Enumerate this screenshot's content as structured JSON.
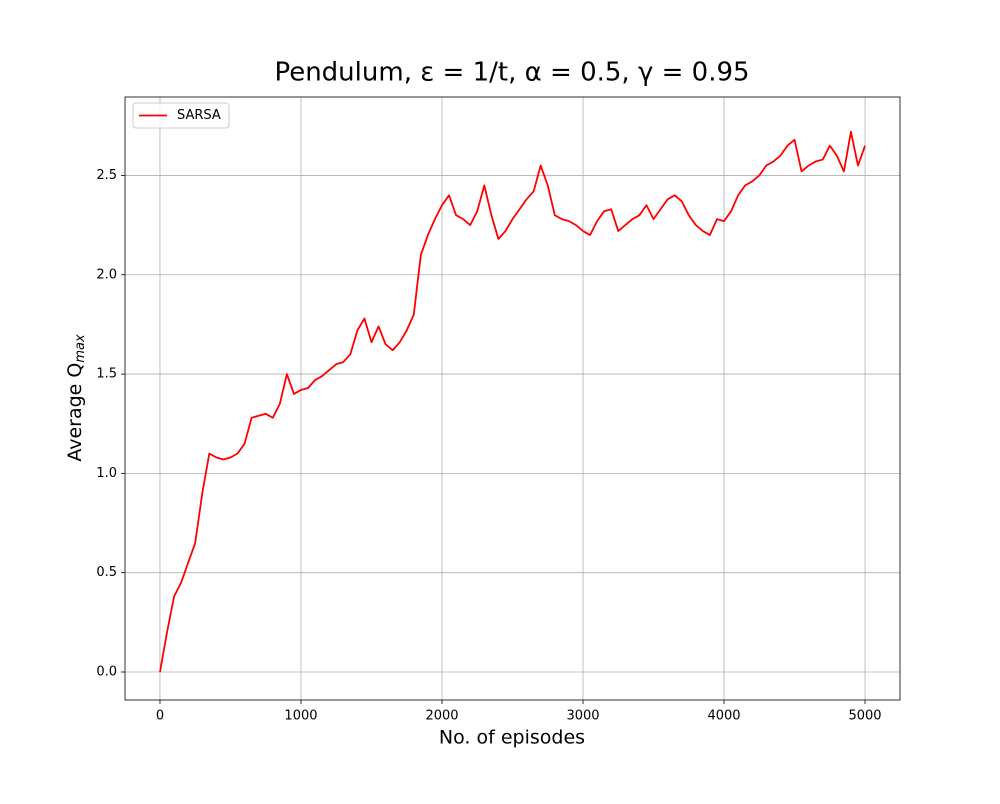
{
  "chart_data": {
    "type": "line",
    "title": "Pendulum, ε = 1/t, α = 0.5, γ = 0.95",
    "xlabel": "No. of episodes",
    "ylabel": {
      "text": "Average Q",
      "subscript": "max"
    },
    "x": [
      0,
      50,
      100,
      150,
      200,
      250,
      300,
      350,
      400,
      450,
      500,
      550,
      600,
      650,
      700,
      750,
      800,
      850,
      900,
      950,
      1000,
      1050,
      1100,
      1150,
      1200,
      1250,
      1300,
      1350,
      1400,
      1450,
      1500,
      1550,
      1600,
      1650,
      1700,
      1750,
      1800,
      1850,
      1900,
      1950,
      2000,
      2050,
      2100,
      2150,
      2200,
      2250,
      2300,
      2350,
      2400,
      2450,
      2500,
      2550,
      2600,
      2650,
      2700,
      2750,
      2800,
      2850,
      2900,
      2950,
      3000,
      3050,
      3100,
      3150,
      3200,
      3250,
      3300,
      3350,
      3400,
      3450,
      3500,
      3550,
      3600,
      3650,
      3700,
      3750,
      3800,
      3850,
      3900,
      3950,
      4000,
      4050,
      4100,
      4150,
      4200,
      4250,
      4300,
      4350,
      4400,
      4450,
      4500,
      4550,
      4600,
      4650,
      4700,
      4750,
      4800,
      4850,
      4900,
      4950,
      5000
    ],
    "series": [
      {
        "name": "SARSA",
        "color": "#ff0000",
        "values": [
          0,
          0.2,
          0.38,
          0.45,
          0.55,
          0.65,
          0.9,
          1.1,
          1.08,
          1.07,
          1.08,
          1.1,
          1.15,
          1.28,
          1.29,
          1.3,
          1.28,
          1.35,
          1.5,
          1.4,
          1.42,
          1.43,
          1.47,
          1.49,
          1.52,
          1.55,
          1.56,
          1.6,
          1.72,
          1.78,
          1.66,
          1.74,
          1.65,
          1.62,
          1.66,
          1.72,
          1.8,
          2.1,
          2.2,
          2.28,
          2.35,
          2.4,
          2.3,
          2.28,
          2.25,
          2.32,
          2.45,
          2.3,
          2.18,
          2.22,
          2.28,
          2.33,
          2.38,
          2.42,
          2.55,
          2.45,
          2.3,
          2.28,
          2.27,
          2.25,
          2.22,
          2.2,
          2.27,
          2.32,
          2.33,
          2.22,
          2.25,
          2.28,
          2.3,
          2.35,
          2.28,
          2.33,
          2.38,
          2.4,
          2.37,
          2.3,
          2.25,
          2.22,
          2.2,
          2.28,
          2.27,
          2.32,
          2.4,
          2.45,
          2.47,
          2.5,
          2.55,
          2.57,
          2.6,
          2.65,
          2.68,
          2.52,
          2.55,
          2.57,
          2.58,
          2.65,
          2.6,
          2.52,
          2.72,
          2.55,
          2.65
        ]
      }
    ],
    "xlim": [
      -248,
      5248
    ],
    "ylim": [
      -0.141,
      2.895
    ],
    "xticks": [
      0,
      1000,
      2000,
      3000,
      4000,
      5000
    ],
    "yticks": [
      {
        "value": 0,
        "label": "0.0"
      },
      0.5,
      {
        "value": 1,
        "label": "1.0"
      },
      1.5,
      {
        "value": 2,
        "label": "2.0"
      },
      2.5
    ],
    "grid": true,
    "legend": "upper left"
  }
}
